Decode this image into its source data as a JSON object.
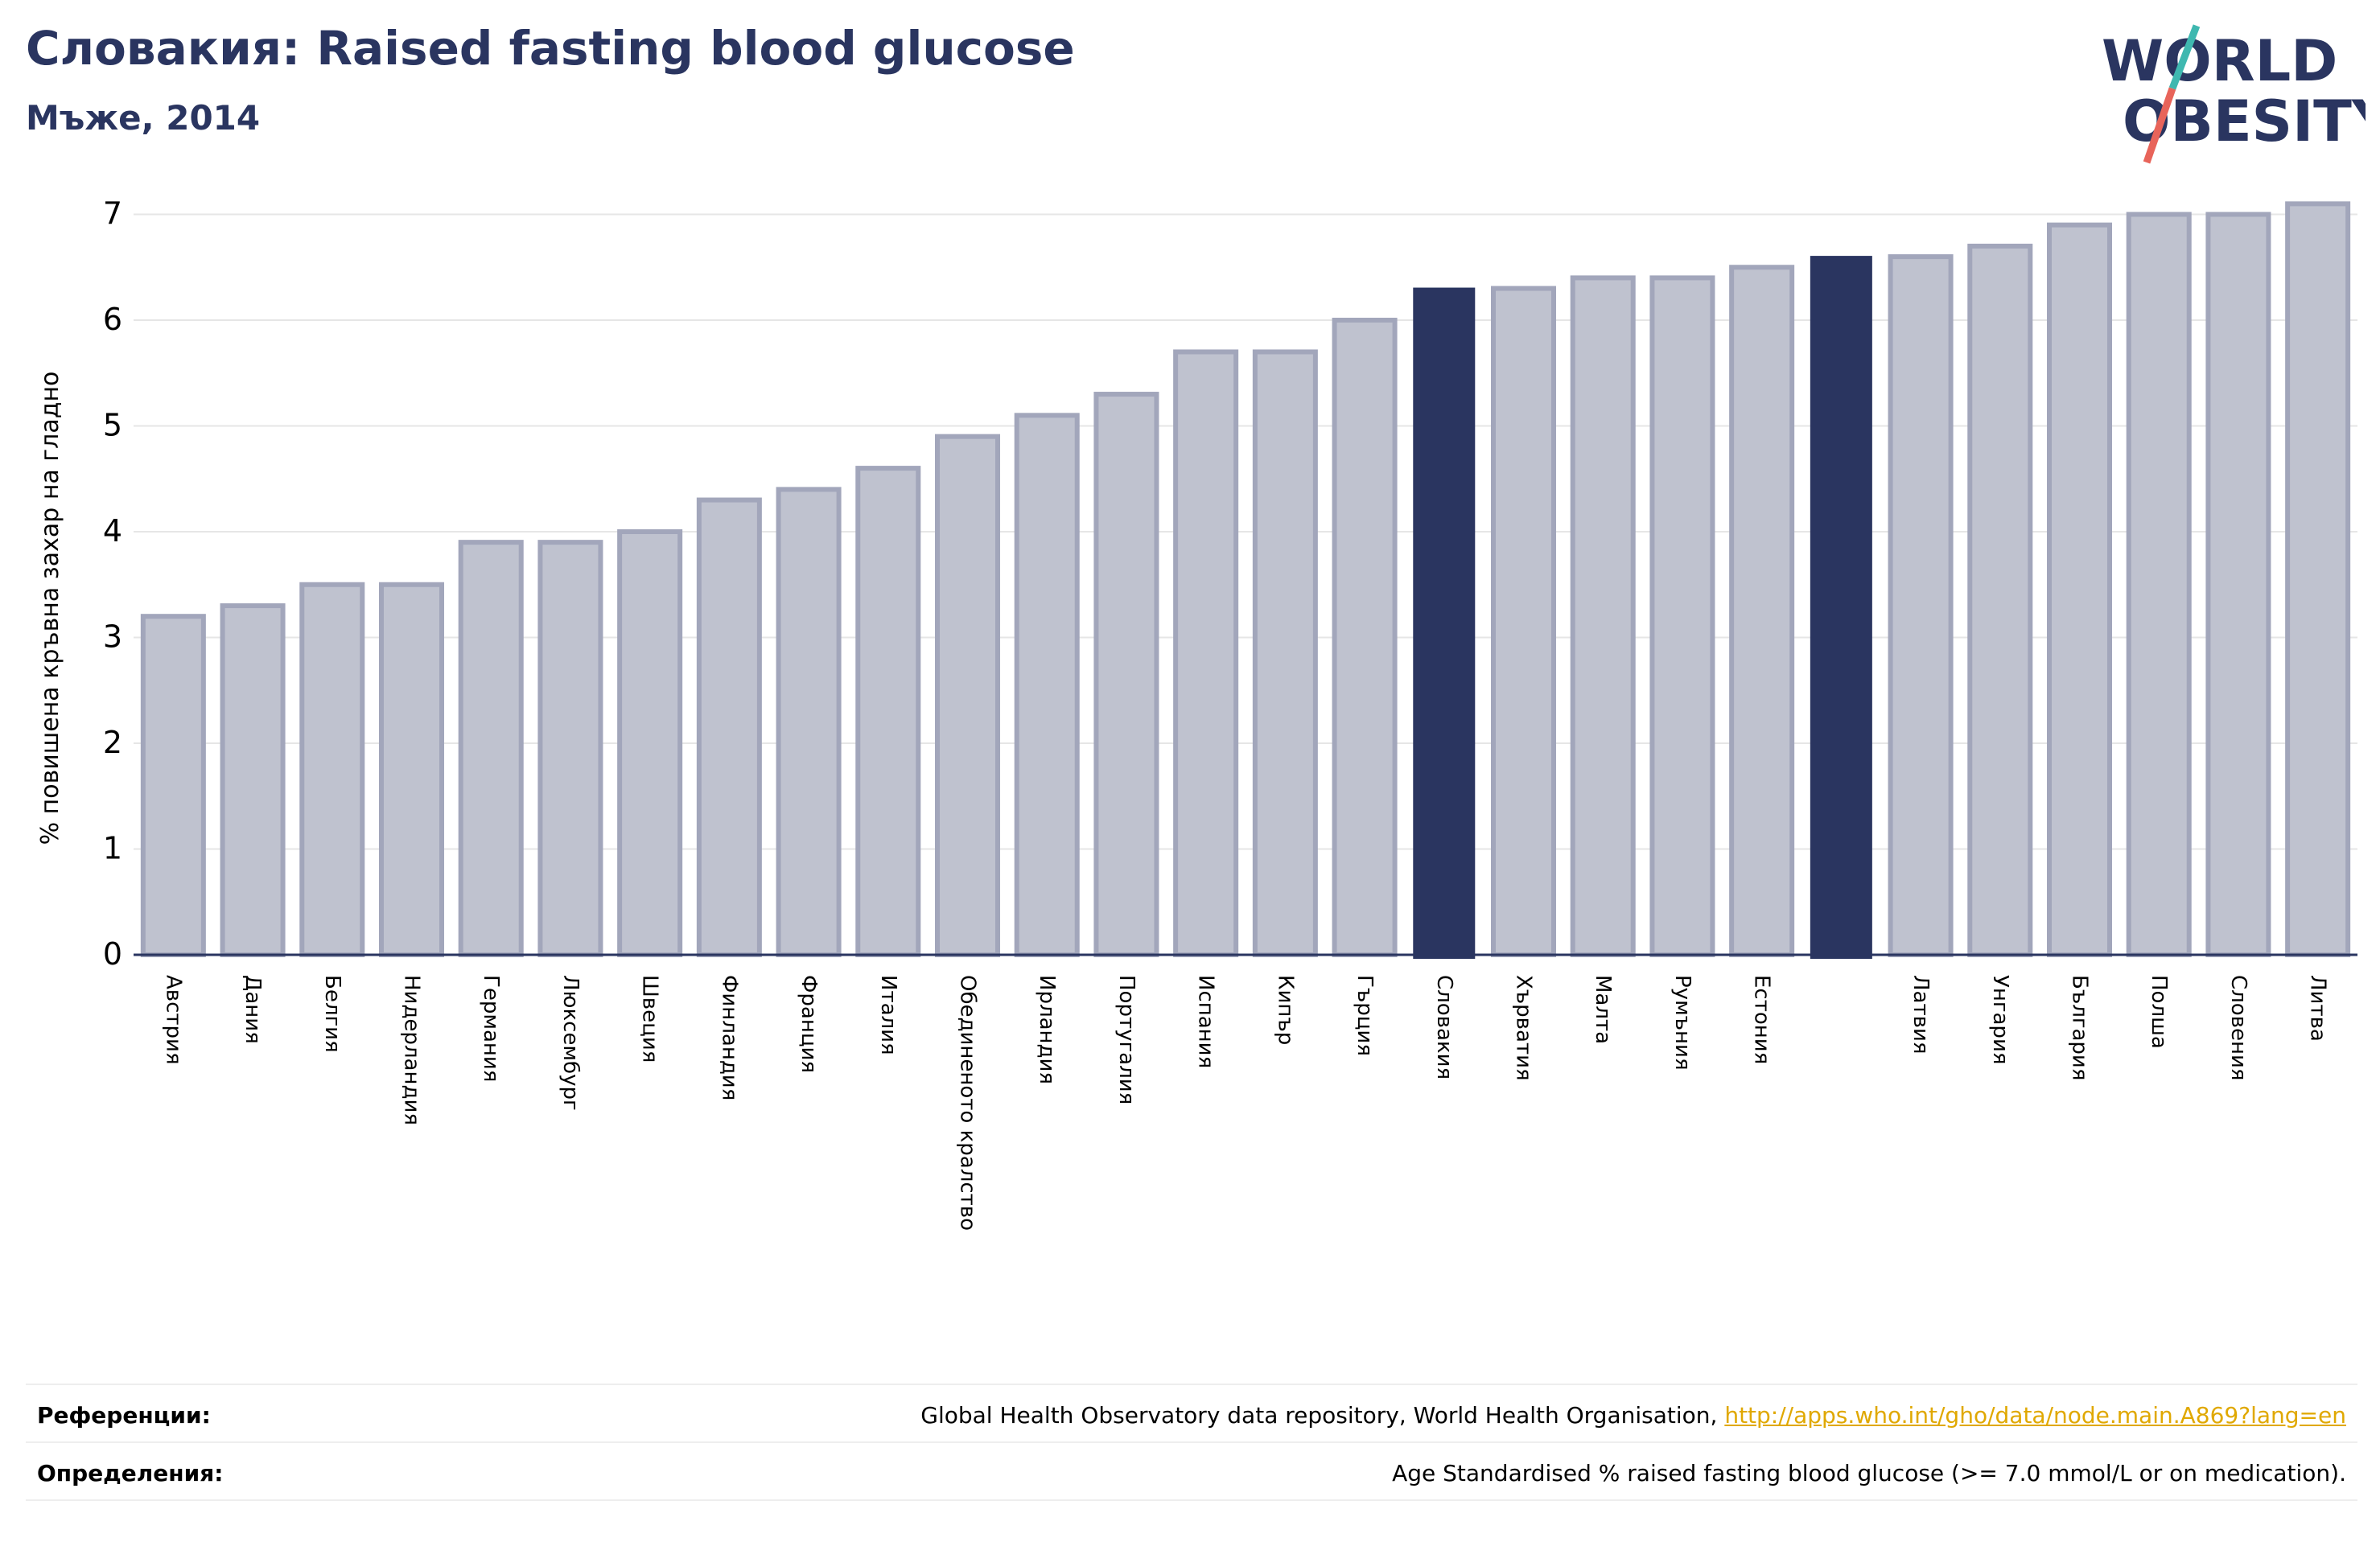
{
  "header": {
    "title": "Словакия: Raised fasting blood glucose",
    "subtitle": "Мъже, 2014"
  },
  "logo": {
    "line1": "WORLD",
    "line2": "OBESITY"
  },
  "colors": {
    "bar_fill": "#bfc2cf",
    "bar_stroke": "#a2a6bb",
    "highlight": "#2a3560",
    "title": "#2a3560",
    "link": "#e0a800",
    "logo_teal": "#3fb8b0",
    "logo_red": "#e8645a"
  },
  "chart_data": {
    "type": "bar",
    "ylabel": "% повишена кръвна захар на гладно",
    "ylim": [
      0,
      7.3
    ],
    "yticks": [
      0,
      1,
      2,
      3,
      4,
      5,
      6,
      7
    ],
    "grid": true,
    "categories": [
      "Австрия",
      "Дания",
      "Белгия",
      "Нидерландия",
      "Германия",
      "Люксембург",
      "Швеция",
      "Финландия",
      "Франция",
      "Италия",
      "Обединеното кралство",
      "Ирландия",
      "Португалия",
      "Испания",
      "Кипър",
      "Гърция",
      "Словакия",
      "Хърватия",
      "Малта",
      "Румъния",
      "Естония",
      "",
      "Латвия",
      "Унгария",
      "България",
      "Полша",
      "Словения",
      "Литва"
    ],
    "values": [
      3.2,
      3.3,
      3.5,
      3.5,
      3.9,
      3.9,
      4.0,
      4.3,
      4.4,
      4.6,
      4.9,
      5.1,
      5.3,
      5.7,
      5.7,
      6.0,
      6.3,
      6.3,
      6.4,
      6.4,
      6.5,
      6.6,
      6.6,
      6.7,
      6.9,
      7.0,
      7.0,
      7.1
    ],
    "highlighted": [
      16,
      21
    ]
  },
  "footer": {
    "references_label": "Референции:",
    "references_text": "Global Health Observatory data repository, World Health Organisation, ",
    "references_link": "http://apps.who.int/gho/data/node.main.A869?lang=en",
    "definitions_label": "Определения:",
    "definitions_text": "Age Standardised % raised fasting blood glucose (>= 7.0 mmol/L or on medication)."
  }
}
